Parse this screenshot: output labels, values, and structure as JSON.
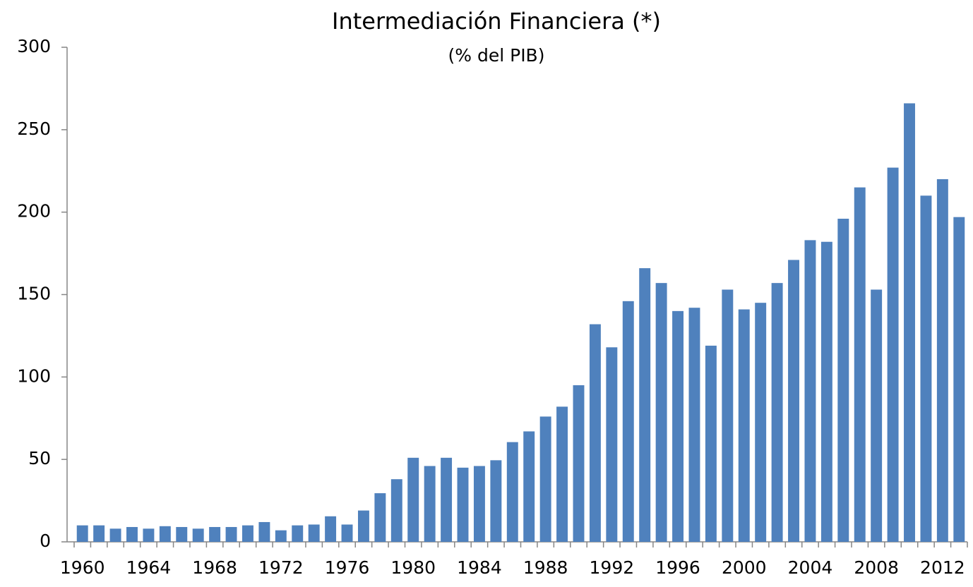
{
  "chart_data": {
    "type": "bar",
    "title": "Intermediación Financiera (*)",
    "subtitle": "(% del PIB)",
    "categories": [
      "1960",
      null,
      null,
      null,
      "1964",
      null,
      null,
      null,
      "1968",
      null,
      null,
      null,
      "1972",
      null,
      null,
      null,
      "1976",
      null,
      null,
      null,
      "1980",
      null,
      null,
      null,
      "1984",
      null,
      null,
      null,
      "1988",
      null,
      null,
      null,
      "1992",
      null,
      null,
      null,
      "1996",
      null,
      null,
      null,
      "2000",
      null,
      null,
      null,
      "2004",
      null,
      null,
      null,
      "2008",
      null,
      null,
      null,
      "2012",
      null
    ],
    "values": [
      10,
      10,
      8,
      9,
      8,
      9.5,
      9,
      8,
      9,
      9,
      10,
      12,
      7,
      10,
      10.5,
      15.5,
      10.5,
      19,
      29.5,
      38,
      51,
      46,
      51,
      45,
      46,
      49.5,
      60.5,
      67,
      76,
      82,
      95,
      132,
      118,
      146,
      166,
      157,
      140,
      142,
      119,
      153,
      141,
      145,
      157,
      171,
      183,
      182,
      196,
      215,
      153,
      227,
      266,
      210,
      220,
      197
    ],
    "color": "#4f81bd",
    "ylim": [
      0,
      300
    ],
    "yticks": [
      0,
      50,
      100,
      150,
      200,
      250,
      300
    ],
    "grid": false
  }
}
